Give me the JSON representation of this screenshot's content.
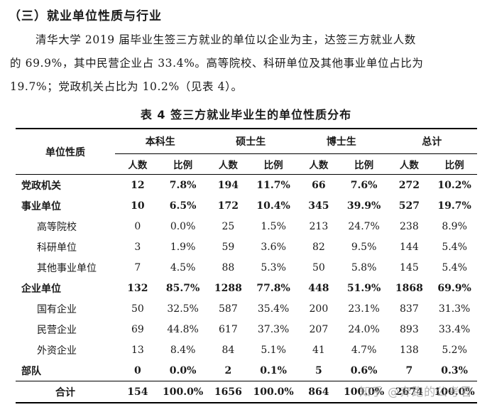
{
  "section_heading": "（三）就业单位性质与行业",
  "paragraph": {
    "line1": "清华大学 2019 届毕业生签三方就业的单位以企业为主，达签三方就业人数",
    "line2": "的 69.9%，其中民营企业占 33.4%。高等院校、科研单位及其他事业单位占比为",
    "line3": "19.7%；党政机关占比为 10.2%（见表 4）。"
  },
  "table": {
    "title": "表 4 签三方就业毕业生的单位性质分布",
    "row_header": "单位性质",
    "groups": [
      "本科生",
      "硕士生",
      "博士生",
      "总计"
    ],
    "subheaders": [
      "人数",
      "比例",
      "人数",
      "比例",
      "人数",
      "比例",
      "人数",
      "比例"
    ],
    "rows": [
      {
        "label": "党政机关",
        "type": "cat",
        "cells": [
          "12",
          "7.8%",
          "194",
          "11.7%",
          "66",
          "7.6%",
          "272",
          "10.2%"
        ]
      },
      {
        "label": "事业单位",
        "type": "cat",
        "cells": [
          "10",
          "6.5%",
          "172",
          "10.4%",
          "345",
          "39.9%",
          "527",
          "19.7%"
        ]
      },
      {
        "label": "高等院校",
        "type": "sub",
        "cells": [
          "0",
          "0.0%",
          "25",
          "1.5%",
          "213",
          "24.7%",
          "238",
          "8.9%"
        ]
      },
      {
        "label": "科研单位",
        "type": "sub",
        "cells": [
          "3",
          "1.9%",
          "59",
          "3.6%",
          "82",
          "9.5%",
          "144",
          "5.4%"
        ]
      },
      {
        "label": "其他事业单位",
        "type": "sub",
        "cells": [
          "7",
          "4.5%",
          "88",
          "5.3%",
          "50",
          "5.8%",
          "145",
          "5.4%"
        ]
      },
      {
        "label": "企业单位",
        "type": "cat",
        "cells": [
          "132",
          "85.7%",
          "1288",
          "77.8%",
          "448",
          "51.9%",
          "1868",
          "69.9%"
        ]
      },
      {
        "label": "国有企业",
        "type": "sub",
        "cells": [
          "50",
          "32.5%",
          "587",
          "35.4%",
          "200",
          "23.1%",
          "837",
          "31.3%"
        ]
      },
      {
        "label": "民营企业",
        "type": "sub",
        "cells": [
          "69",
          "44.8%",
          "617",
          "37.3%",
          "207",
          "24.0%",
          "893",
          "33.4%"
        ]
      },
      {
        "label": "外资企业",
        "type": "sub",
        "cells": [
          "13",
          "8.4%",
          "84",
          "5.1%",
          "41",
          "4.7%",
          "138",
          "5.2%"
        ]
      },
      {
        "label": "部队",
        "type": "cat",
        "cells": [
          "0",
          "0.0%",
          "2",
          "0.1%",
          "5",
          "0.6%",
          "7",
          "0.3%"
        ]
      },
      {
        "label": "合计",
        "type": "total",
        "cells": [
          "154",
          "100.0%",
          "1656",
          "100.0%",
          "864",
          "100.0%",
          "2674",
          "100.0%"
        ]
      }
    ]
  },
  "watermark": "知乎 @奔跑的公考君"
}
